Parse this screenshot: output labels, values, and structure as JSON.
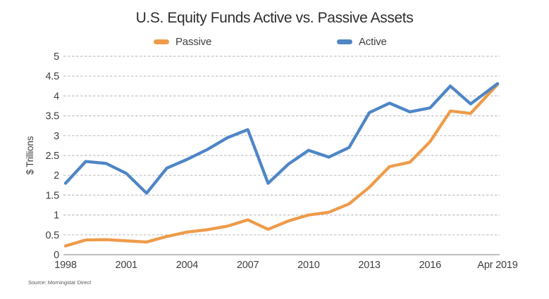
{
  "source": "Source: Morningstar Direct",
  "colors": {
    "passive": "#EE9B4A",
    "active": "#4E86C6",
    "grid": "#c2c2c2",
    "axis": "#9a9a9a",
    "text": "#3f3f3f"
  },
  "chart_data": {
    "type": "line",
    "title": "U.S. Equity Funds Active vs. Passive Assets",
    "ylabel": "$ Trillions",
    "ylim": [
      0,
      5
    ],
    "ytick_step": 0.5,
    "grid": "dashed horizontal gridlines",
    "legend_position": "top",
    "x": [
      1998,
      1999,
      2000,
      2001,
      2002,
      2003,
      2004,
      2005,
      2006,
      2007,
      2008,
      2009,
      2010,
      2011,
      2012,
      2013,
      2014,
      2015,
      2016,
      2017,
      2018,
      2019.33
    ],
    "x_ticks": [
      {
        "label": "1998",
        "x": 1998
      },
      {
        "label": "2001",
        "x": 2001
      },
      {
        "label": "2004",
        "x": 2004
      },
      {
        "label": "2007",
        "x": 2007
      },
      {
        "label": "2010",
        "x": 2010
      },
      {
        "label": "2013",
        "x": 2013
      },
      {
        "label": "2016",
        "x": 2016
      },
      {
        "label": "Apr 2019",
        "x": 2019.33
      }
    ],
    "series": [
      {
        "name": "Passive",
        "color": "#EE9B4A",
        "values": [
          0.22,
          0.37,
          0.38,
          0.35,
          0.32,
          0.46,
          0.57,
          0.63,
          0.72,
          0.88,
          0.64,
          0.85,
          1.0,
          1.07,
          1.28,
          1.7,
          2.22,
          2.33,
          2.85,
          3.62,
          3.56,
          4.29
        ]
      },
      {
        "name": "Active",
        "color": "#4E86C6",
        "values": [
          1.8,
          2.35,
          2.3,
          2.05,
          1.55,
          2.18,
          2.4,
          2.65,
          2.95,
          3.15,
          1.8,
          2.28,
          2.63,
          2.46,
          2.7,
          3.58,
          3.82,
          3.6,
          3.7,
          4.25,
          3.8,
          4.31
        ]
      }
    ]
  }
}
